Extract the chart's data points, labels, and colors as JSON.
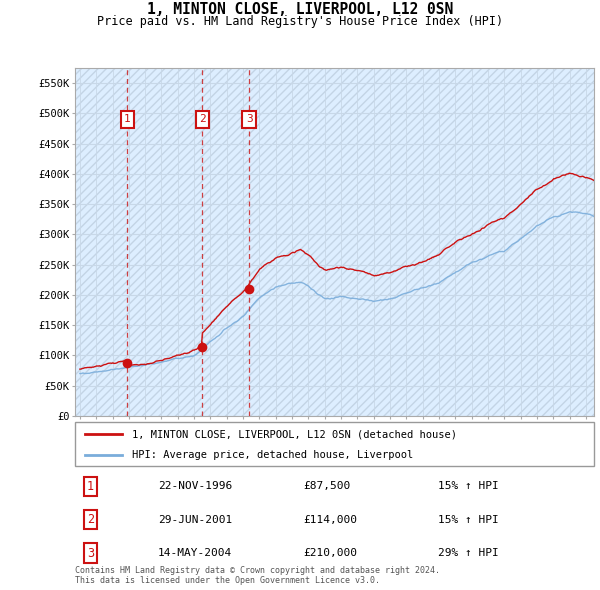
{
  "title": "1, MINTON CLOSE, LIVERPOOL, L12 0SN",
  "subtitle": "Price paid vs. HM Land Registry's House Price Index (HPI)",
  "ylabel_ticks": [
    "£0",
    "£50K",
    "£100K",
    "£150K",
    "£200K",
    "£250K",
    "£300K",
    "£350K",
    "£400K",
    "£450K",
    "£500K",
    "£550K"
  ],
  "ytick_values": [
    0,
    50000,
    100000,
    150000,
    200000,
    250000,
    300000,
    350000,
    400000,
    450000,
    500000,
    550000
  ],
  "xlim_start": 1993.7,
  "xlim_end": 2025.5,
  "ylim_min": 0,
  "ylim_max": 575000,
  "hpi_color": "#7aaddb",
  "price_color": "#cc1111",
  "marker_color": "#cc1111",
  "purchases": [
    {
      "date_num": 1996.9,
      "price": 87500,
      "label": "1"
    },
    {
      "date_num": 2001.5,
      "price": 114000,
      "label": "2"
    },
    {
      "date_num": 2004.37,
      "price": 210000,
      "label": "3"
    }
  ],
  "vline_dates": [
    1996.9,
    2001.5,
    2004.37
  ],
  "legend_price_label": "1, MINTON CLOSE, LIVERPOOL, L12 0SN (detached house)",
  "legend_hpi_label": "HPI: Average price, detached house, Liverpool",
  "table_data": [
    {
      "num": "1",
      "date": "22-NOV-1996",
      "price": "£87,500",
      "change": "15% ↑ HPI"
    },
    {
      "num": "2",
      "date": "29-JUN-2001",
      "price": "£114,000",
      "change": "15% ↑ HPI"
    },
    {
      "num": "3",
      "date": "14-MAY-2004",
      "price": "£210,000",
      "change": "29% ↑ HPI"
    }
  ],
  "footer": "Contains HM Land Registry data © Crown copyright and database right 2024.\nThis data is licensed under the Open Government Licence v3.0.",
  "grid_color": "#c8d8e8",
  "bg_color": "#ddeeff",
  "hatch_color": "#aabbcc"
}
